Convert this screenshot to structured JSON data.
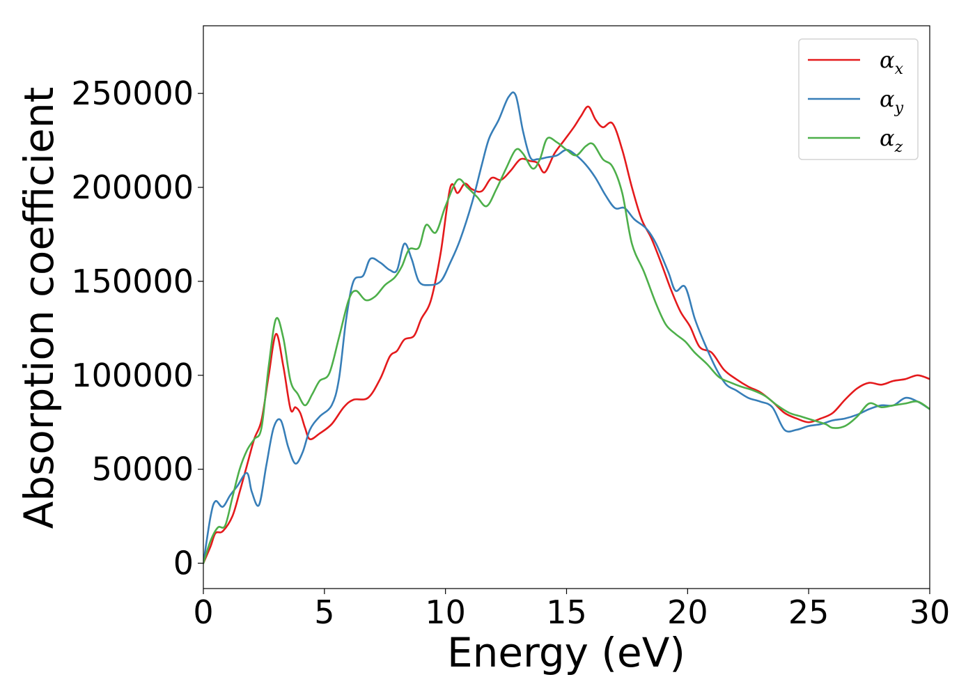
{
  "chart_data": {
    "type": "line",
    "xlabel": "Energy (eV)",
    "ylabel": "Absorption coefficient",
    "xlim": [
      0,
      30
    ],
    "ylim": [
      -13500,
      286000
    ],
    "x_ticks": [
      0,
      5,
      10,
      15,
      20,
      25,
      30
    ],
    "x_tick_labels": [
      "0",
      "5",
      "10",
      "15",
      "20",
      "25",
      "30"
    ],
    "y_ticks": [
      0,
      50000,
      100000,
      150000,
      200000,
      250000
    ],
    "y_tick_labels": [
      "0",
      "50000",
      "100000",
      "150000",
      "200000",
      "250000"
    ],
    "grid": false,
    "legend_position": "top-right",
    "series": [
      {
        "name": "α",
        "subscript": "x",
        "color": "#e41a1c",
        "x": [
          0,
          0.3,
          0.5,
          0.8,
          1.2,
          1.5,
          1.8,
          2.1,
          2.4,
          2.7,
          3.0,
          3.3,
          3.6,
          3.8,
          4.0,
          4.2,
          4.4,
          4.8,
          5.3,
          5.8,
          6.2,
          6.8,
          7.3,
          7.7,
          8.0,
          8.3,
          8.7,
          9.0,
          9.4,
          9.8,
          10.2,
          10.5,
          10.8,
          11.1,
          11.5,
          11.9,
          12.3,
          12.7,
          13.1,
          13.5,
          13.8,
          14.1,
          14.5,
          14.9,
          15.3,
          15.6,
          15.9,
          16.2,
          16.5,
          16.9,
          17.3,
          17.7,
          18.1,
          18.5,
          18.9,
          19.3,
          19.7,
          20.1,
          20.5,
          21.0,
          21.5,
          22.0,
          22.5,
          23.0,
          23.5,
          24.0,
          24.5,
          25.0,
          25.5,
          26.0,
          26.5,
          27.0,
          27.5,
          28.0,
          28.5,
          29.0,
          29.5,
          30.0
        ],
        "values": [
          0,
          9000,
          16000,
          17000,
          25000,
          38000,
          52000,
          66000,
          76000,
          100000,
          122000,
          105000,
          82000,
          83000,
          80000,
          72000,
          66000,
          69000,
          74000,
          83000,
          87000,
          88000,
          98000,
          110000,
          113000,
          119000,
          121000,
          130000,
          140000,
          165000,
          200000,
          197000,
          202000,
          199000,
          198000,
          205000,
          204000,
          209000,
          215000,
          214000,
          213000,
          208000,
          218000,
          225000,
          232000,
          238000,
          243000,
          236000,
          232000,
          234000,
          220000,
          200000,
          183000,
          173000,
          160000,
          146000,
          134000,
          126000,
          115000,
          112000,
          103000,
          98000,
          94000,
          91000,
          86000,
          80000,
          77000,
          75000,
          77000,
          80000,
          87000,
          93000,
          96000,
          95000,
          97000,
          98000,
          100000,
          98000
        ]
      },
      {
        "name": "α",
        "subscript": "y",
        "color": "#377eb8",
        "x": [
          0,
          0.3,
          0.5,
          0.8,
          1.1,
          1.4,
          1.8,
          2.0,
          2.3,
          2.6,
          2.9,
          3.2,
          3.5,
          3.8,
          4.1,
          4.4,
          4.8,
          5.3,
          5.6,
          5.9,
          6.2,
          6.6,
          6.9,
          7.3,
          7.7,
          8.0,
          8.3,
          8.6,
          8.9,
          9.3,
          9.8,
          10.2,
          10.6,
          11.1,
          11.5,
          11.8,
          12.2,
          12.6,
          12.9,
          13.2,
          13.5,
          13.8,
          14.2,
          14.6,
          15.0,
          15.4,
          15.8,
          16.2,
          16.6,
          17.0,
          17.4,
          17.8,
          18.3,
          18.7,
          19.2,
          19.5,
          19.9,
          20.3,
          20.7,
          21.2,
          21.6,
          22.0,
          22.5,
          23.0,
          23.5,
          24.0,
          24.5,
          25.0,
          25.5,
          26.0,
          26.5,
          27.0,
          27.5,
          28.0,
          28.5,
          29.0,
          29.5,
          30.0
        ],
        "values": [
          0,
          25000,
          33000,
          30000,
          36000,
          41000,
          48000,
          38000,
          31000,
          52000,
          72000,
          76000,
          62000,
          53000,
          59000,
          71000,
          78000,
          84000,
          98000,
          130000,
          150000,
          153000,
          162000,
          160000,
          156000,
          156000,
          170000,
          162000,
          150000,
          148000,
          150000,
          160000,
          172000,
          192000,
          212000,
          226000,
          236000,
          248000,
          249000,
          230000,
          216000,
          215000,
          216000,
          217000,
          220000,
          217000,
          212000,
          205000,
          196000,
          189000,
          189000,
          183000,
          178000,
          170000,
          155000,
          145000,
          147000,
          130000,
          117000,
          103000,
          95000,
          92000,
          88000,
          86000,
          83000,
          71000,
          71000,
          73000,
          74000,
          76000,
          77000,
          79000,
          82000,
          84000,
          84000,
          88000,
          86000,
          82000
        ]
      },
      {
        "name": "α",
        "subscript": "z",
        "color": "#4daf4a",
        "x": [
          0,
          0.3,
          0.6,
          0.9,
          1.2,
          1.5,
          1.8,
          2.1,
          2.4,
          2.7,
          3.0,
          3.3,
          3.6,
          3.9,
          4.2,
          4.5,
          4.8,
          5.2,
          5.6,
          6.0,
          6.3,
          6.7,
          7.1,
          7.5,
          7.9,
          8.2,
          8.5,
          8.9,
          9.2,
          9.6,
          10.0,
          10.5,
          10.9,
          11.3,
          11.7,
          12.1,
          12.5,
          12.9,
          13.2,
          13.6,
          13.9,
          14.2,
          14.6,
          15.0,
          15.4,
          15.8,
          16.1,
          16.5,
          16.9,
          17.3,
          17.7,
          18.2,
          18.7,
          19.1,
          19.5,
          19.9,
          20.3,
          20.8,
          21.3,
          21.8,
          22.2,
          22.7,
          23.2,
          23.7,
          24.2,
          24.7,
          25.2,
          25.7,
          26.0,
          26.5,
          27.0,
          27.5,
          28.0,
          28.5,
          29.0,
          29.5,
          30.0
        ],
        "values": [
          0,
          12000,
          19000,
          20000,
          35000,
          50000,
          60000,
          66000,
          72000,
          105000,
          130000,
          120000,
          97000,
          90000,
          84000,
          90000,
          97000,
          101000,
          120000,
          140000,
          145000,
          140000,
          142000,
          148000,
          152000,
          158000,
          167000,
          168000,
          180000,
          176000,
          190000,
          204000,
          200000,
          195000,
          190000,
          199000,
          210000,
          220000,
          218000,
          210000,
          215000,
          226000,
          224000,
          220000,
          217000,
          222000,
          223000,
          215000,
          211000,
          197000,
          170000,
          155000,
          138000,
          127000,
          122000,
          118000,
          112000,
          106000,
          99000,
          96000,
          94000,
          92000,
          89000,
          84000,
          80000,
          78000,
          76000,
          74000,
          72000,
          73000,
          78000,
          85000,
          83000,
          84000,
          85000,
          86000,
          82000
        ]
      }
    ]
  }
}
